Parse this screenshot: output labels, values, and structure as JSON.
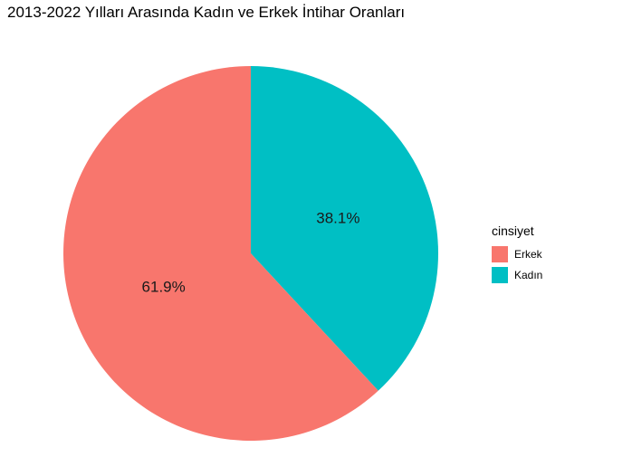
{
  "chart_data": {
    "type": "pie",
    "title": "2013-2022 Yılları Arasında Kadın ve Erkek İntihar Oranları",
    "legend_title": "cinsiyet",
    "legend_position": "right",
    "categories": [
      "Erkek",
      "Kadın"
    ],
    "values": [
      61.9,
      38.1
    ],
    "labels": [
      "61.9%",
      "38.1%"
    ],
    "colors": [
      "#F8766D",
      "#00BFC4"
    ]
  }
}
